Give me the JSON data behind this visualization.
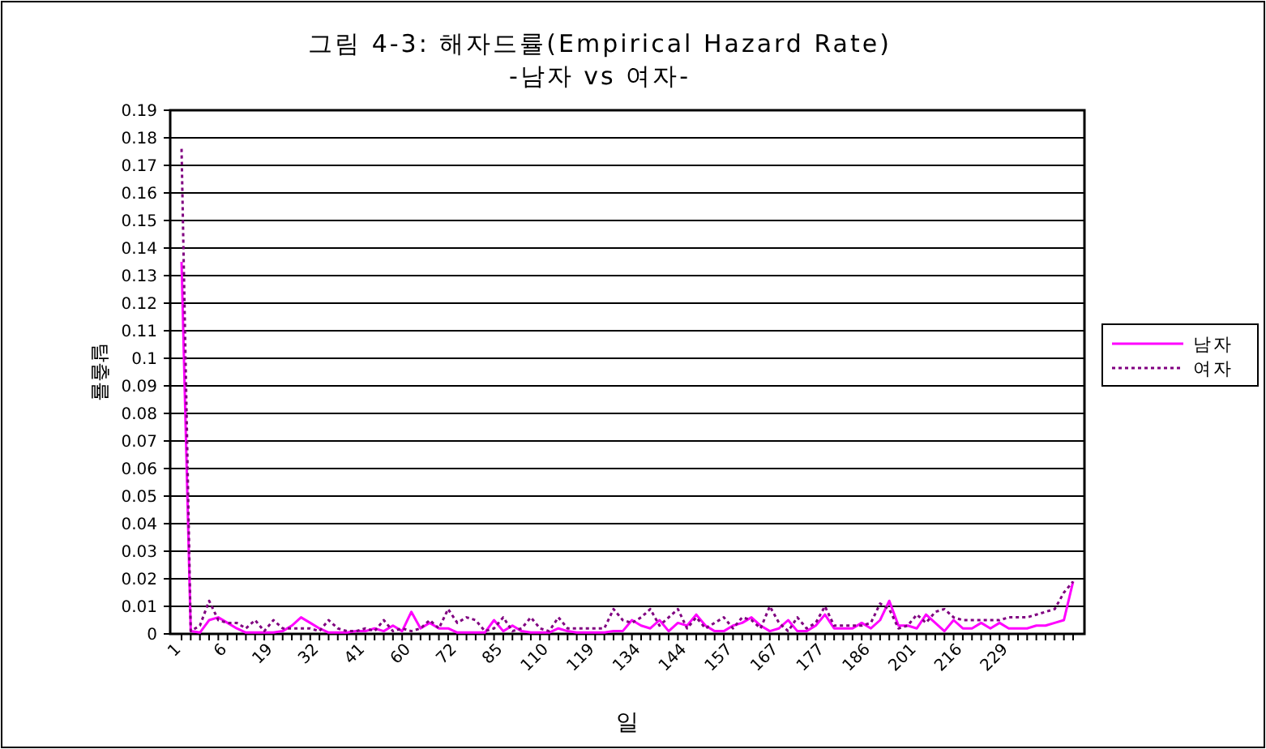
{
  "chart_data": {
    "type": "line",
    "title": "그림 4-3: 해자드률(Empirical Hazard Rate)",
    "subtitle": "-남자 vs 여자-",
    "xlabel": "일",
    "ylabel": "탈출률",
    "categories": [
      "1",
      null,
      null,
      null,
      null,
      "6",
      null,
      null,
      null,
      null,
      "19",
      null,
      null,
      null,
      null,
      "32",
      null,
      null,
      null,
      null,
      "41",
      null,
      null,
      null,
      null,
      "60",
      null,
      null,
      null,
      null,
      "72",
      null,
      null,
      null,
      null,
      "85",
      null,
      null,
      null,
      null,
      "110",
      null,
      null,
      null,
      null,
      "119",
      null,
      null,
      null,
      null,
      "134",
      null,
      null,
      null,
      null,
      "144",
      null,
      null,
      null,
      null,
      "157",
      null,
      null,
      null,
      null,
      "167",
      null,
      null,
      null,
      null,
      "177",
      null,
      null,
      null,
      null,
      "186",
      null,
      null,
      null,
      null,
      "201",
      null,
      null,
      null,
      null,
      "216",
      null,
      null,
      null,
      null,
      "229",
      null,
      null,
      null,
      null,
      null,
      null,
      null
    ],
    "series": [
      {
        "name": "남자",
        "color": "#ff00ff",
        "line_style": "solid",
        "values": [
          0.135,
          0.001,
          0.0005,
          0.005,
          0.006,
          0.004,
          0.002,
          0.0005,
          0.0005,
          0.0005,
          0.0005,
          0.001,
          0.003,
          0.006,
          0.004,
          0.002,
          0.0005,
          0.0005,
          0.0005,
          0.001,
          0.001,
          0.002,
          0.001,
          0.003,
          0.001,
          0.008,
          0.002,
          0.004,
          0.002,
          0.002,
          0.0005,
          0.0005,
          0.0005,
          0.0005,
          0.005,
          0.001,
          0.003,
          0.001,
          0.0005,
          0.0005,
          0.0005,
          0.002,
          0.001,
          0.0005,
          0.0005,
          0.0005,
          0.0005,
          0.001,
          0.001,
          0.005,
          0.003,
          0.002,
          0.005,
          0.001,
          0.004,
          0.003,
          0.007,
          0.003,
          0.001,
          0.001,
          0.003,
          0.004,
          0.006,
          0.003,
          0.001,
          0.002,
          0.005,
          0.001,
          0.001,
          0.003,
          0.007,
          0.002,
          0.002,
          0.002,
          0.004,
          0.002,
          0.005,
          0.012,
          0.003,
          0.003,
          0.002,
          0.007,
          0.004,
          0.001,
          0.005,
          0.002,
          0.002,
          0.004,
          0.002,
          0.004,
          0.002,
          0.002,
          0.002,
          0.003,
          0.003,
          0.004,
          0.005,
          0.019
        ]
      },
      {
        "name": "여자",
        "color": "#800080",
        "line_style": "dotted",
        "values": [
          0.176,
          0.001,
          0.003,
          0.012,
          0.005,
          0.004,
          0.004,
          0.002,
          0.005,
          0.001,
          0.005,
          0.002,
          0.002,
          0.002,
          0.002,
          0.001,
          0.005,
          0.002,
          0.001,
          0.001,
          0.002,
          0.001,
          0.005,
          0.001,
          0.002,
          0.001,
          0.002,
          0.005,
          0.002,
          0.009,
          0.004,
          0.006,
          0.005,
          0.001,
          0.002,
          0.006,
          0.001,
          0.002,
          0.006,
          0.002,
          0.001,
          0.006,
          0.002,
          0.002,
          0.002,
          0.002,
          0.002,
          0.009,
          0.005,
          0.004,
          0.006,
          0.009,
          0.003,
          0.006,
          0.009,
          0.002,
          0.006,
          0.002,
          0.004,
          0.006,
          0.002,
          0.006,
          0.005,
          0.002,
          0.01,
          0.004,
          0.001,
          0.006,
          0.002,
          0.004,
          0.01,
          0.003,
          0.003,
          0.003,
          0.003,
          0.004,
          0.011,
          0.009,
          0.002,
          0.003,
          0.007,
          0.004,
          0.008,
          0.009,
          0.006,
          0.005,
          0.005,
          0.005,
          0.005,
          0.005,
          0.006,
          0.006,
          0.006,
          0.007,
          0.008,
          0.009,
          0.015,
          0.019
        ]
      }
    ],
    "ylim": [
      0,
      0.19
    ],
    "yticks": [
      0,
      0.01,
      0.02,
      0.03,
      0.04,
      0.05,
      0.06,
      0.07,
      0.08,
      0.09,
      0.1,
      0.11,
      0.12,
      0.13,
      0.14,
      0.15,
      0.16,
      0.17,
      0.18,
      0.19
    ],
    "grid": "y",
    "legend": "right"
  }
}
